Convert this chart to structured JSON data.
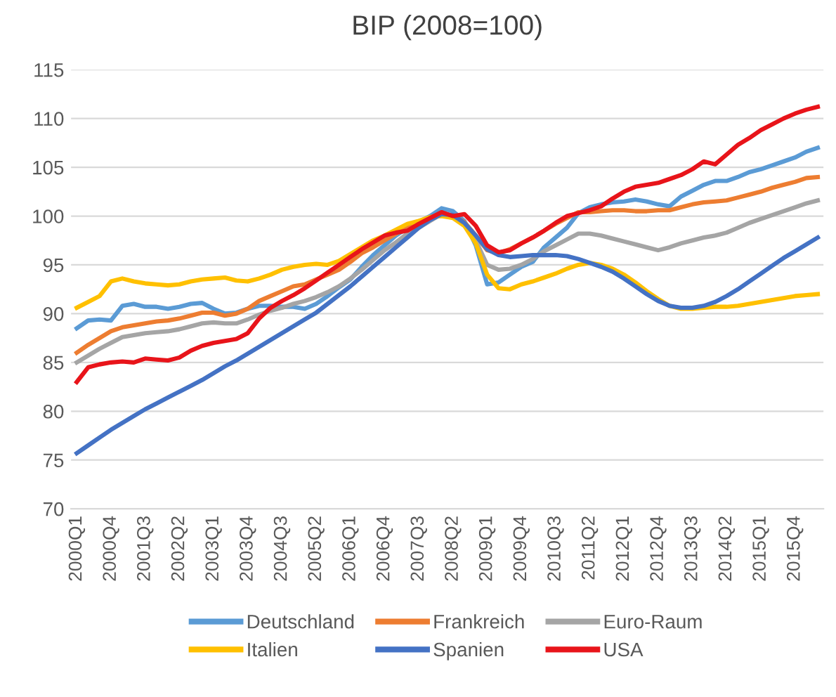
{
  "chart_data": {
    "type": "line",
    "title": "BIP (2008=100)",
    "categories": [
      "2000Q1",
      null,
      null,
      "2000Q4",
      null,
      null,
      "2001Q3",
      null,
      null,
      "2002Q2",
      null,
      null,
      "2003Q1",
      null,
      null,
      "2003Q4",
      null,
      null,
      "2004Q3",
      null,
      null,
      "2005Q2",
      null,
      null,
      "2006Q1",
      null,
      null,
      "2006Q4",
      null,
      null,
      "2007Q3",
      null,
      null,
      "2008Q2",
      null,
      null,
      "2009Q1",
      null,
      null,
      "2009Q4",
      null,
      null,
      "2010Q3",
      null,
      null,
      "2011Q2",
      null,
      null,
      "2012Q1",
      null,
      null,
      "2012Q4",
      null,
      null,
      "2013Q3",
      null,
      null,
      "2014Q2",
      null,
      null,
      "2015Q1",
      null,
      null,
      "2015Q4",
      null,
      null
    ],
    "series": [
      {
        "name": "Deutschland",
        "color": "#5b9bd5",
        "values": [
          88.5,
          89.3,
          89.4,
          89.3,
          90.8,
          91.0,
          90.7,
          90.7,
          90.5,
          90.7,
          91.0,
          91.1,
          90.5,
          90.0,
          90.1,
          90.5,
          90.8,
          90.8,
          90.7,
          90.7,
          90.5,
          91.0,
          91.8,
          92.7,
          93.5,
          94.8,
          96.0,
          97.0,
          98.0,
          98.8,
          99.4,
          100.0,
          100.8,
          100.5,
          99.5,
          97.0,
          93.0,
          93.2,
          94.0,
          94.8,
          95.3,
          96.8,
          97.8,
          98.8,
          100.3,
          100.9,
          101.2,
          101.4,
          101.5,
          101.7,
          101.5,
          101.2,
          101.0,
          102.0,
          102.6,
          103.2,
          103.6,
          103.6,
          104.0,
          104.5,
          104.8,
          105.2,
          105.6,
          106.0,
          106.6,
          107.0
        ]
      },
      {
        "name": "Frankreich",
        "color": "#ed7d31",
        "values": [
          86.0,
          86.8,
          87.5,
          88.2,
          88.6,
          88.8,
          89.0,
          89.2,
          89.3,
          89.5,
          89.8,
          90.1,
          90.1,
          89.8,
          90.0,
          90.5,
          91.3,
          91.8,
          92.3,
          92.8,
          93.0,
          93.5,
          94.0,
          94.5,
          95.3,
          96.2,
          96.8,
          97.5,
          98.2,
          98.8,
          99.4,
          99.8,
          100.3,
          100.0,
          99.4,
          98.0,
          96.5,
          96.2,
          96.6,
          97.2,
          97.8,
          98.5,
          99.2,
          99.8,
          100.4,
          100.4,
          100.5,
          100.6,
          100.6,
          100.5,
          100.5,
          100.6,
          100.6,
          100.9,
          101.2,
          101.4,
          101.5,
          101.6,
          101.9,
          102.2,
          102.5,
          102.9,
          103.2,
          103.5,
          103.9,
          104.0
        ]
      },
      {
        "name": "Euro-Raum",
        "color": "#a5a5a5",
        "values": [
          85.0,
          85.7,
          86.4,
          87.0,
          87.6,
          87.8,
          88.0,
          88.1,
          88.2,
          88.4,
          88.7,
          89.0,
          89.1,
          89.0,
          89.0,
          89.4,
          89.9,
          90.3,
          90.6,
          91.0,
          91.3,
          91.7,
          92.2,
          92.8,
          93.6,
          94.5,
          95.5,
          96.5,
          97.3,
          98.2,
          98.8,
          99.5,
          100.2,
          100.0,
          99.3,
          97.5,
          95.0,
          94.5,
          94.6,
          95.0,
          95.6,
          96.4,
          97.0,
          97.6,
          98.2,
          98.2,
          98.0,
          97.7,
          97.4,
          97.1,
          96.8,
          96.5,
          96.8,
          97.2,
          97.5,
          97.8,
          98.0,
          98.3,
          98.8,
          99.3,
          99.7,
          100.1,
          100.5,
          100.9,
          101.3,
          101.6
        ]
      },
      {
        "name": "Italien",
        "color": "#ffc000",
        "values": [
          90.6,
          91.2,
          91.8,
          93.3,
          93.6,
          93.3,
          93.1,
          93.0,
          92.9,
          93.0,
          93.3,
          93.5,
          93.6,
          93.7,
          93.4,
          93.3,
          93.6,
          94.0,
          94.5,
          94.8,
          95.0,
          95.1,
          95.0,
          95.4,
          96.1,
          96.8,
          97.5,
          98.0,
          98.6,
          99.2,
          99.5,
          99.9,
          100.0,
          99.8,
          99.0,
          97.2,
          94.0,
          92.6,
          92.5,
          93.0,
          93.3,
          93.7,
          94.1,
          94.6,
          95.0,
          95.2,
          95.0,
          94.6,
          94.0,
          93.2,
          92.3,
          91.5,
          90.8,
          90.5,
          90.5,
          90.6,
          90.7,
          90.7,
          90.8,
          91.0,
          91.2,
          91.4,
          91.6,
          91.8,
          91.9,
          92.0
        ]
      },
      {
        "name": "Spanien",
        "color": "#4472c4",
        "values": [
          75.7,
          76.5,
          77.3,
          78.1,
          78.8,
          79.5,
          80.2,
          80.8,
          81.4,
          82.0,
          82.6,
          83.2,
          83.9,
          84.6,
          85.2,
          85.9,
          86.6,
          87.3,
          88.0,
          88.7,
          89.4,
          90.1,
          91.0,
          91.9,
          92.8,
          93.8,
          94.8,
          95.8,
          96.8,
          97.8,
          98.8,
          99.6,
          100.2,
          100.1,
          99.3,
          98.0,
          96.6,
          96.0,
          95.8,
          95.9,
          96.0,
          96.0,
          96.0,
          95.9,
          95.6,
          95.2,
          94.8,
          94.3,
          93.6,
          92.8,
          92.0,
          91.3,
          90.8,
          90.6,
          90.6,
          90.8,
          91.2,
          91.8,
          92.5,
          93.3,
          94.1,
          94.9,
          95.7,
          96.4,
          97.1,
          97.8
        ]
      },
      {
        "name": "USA",
        "color": "#e8141a",
        "values": [
          83.0,
          84.5,
          84.8,
          85.0,
          85.1,
          85.0,
          85.4,
          85.3,
          85.2,
          85.5,
          86.2,
          86.7,
          87.0,
          87.2,
          87.4,
          88.0,
          89.5,
          90.6,
          91.3,
          91.9,
          92.6,
          93.4,
          94.2,
          95.0,
          95.8,
          96.6,
          97.3,
          98.0,
          98.3,
          98.5,
          99.2,
          99.8,
          100.4,
          100.0,
          100.2,
          99.0,
          97.0,
          96.3,
          96.5,
          97.2,
          97.8,
          98.5,
          99.3,
          100.0,
          100.3,
          100.6,
          101.0,
          101.8,
          102.5,
          103.0,
          103.2,
          103.4,
          103.8,
          104.2,
          104.8,
          105.6,
          105.3,
          106.3,
          107.3,
          108.0,
          108.8,
          109.4,
          110.0,
          110.5,
          110.9,
          111.2
        ]
      }
    ],
    "ylim": [
      70,
      115
    ],
    "yticks": [
      70,
      75,
      80,
      85,
      90,
      95,
      100,
      105,
      110,
      115
    ],
    "grid": "y",
    "legend": "bottom",
    "marker": "none",
    "line_style": "solid"
  }
}
